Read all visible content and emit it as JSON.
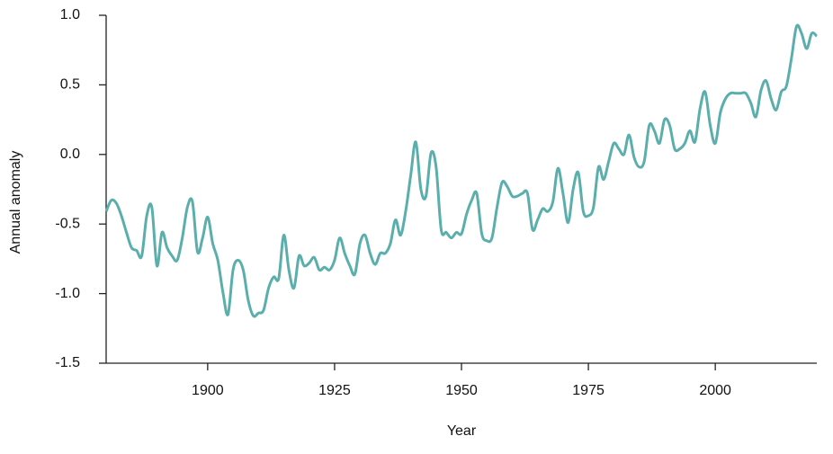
{
  "chart_data": {
    "type": "line",
    "xlabel": "Year",
    "ylabel": "Annual anomaly",
    "x": [
      1880,
      1881,
      1882,
      1883,
      1884,
      1885,
      1886,
      1887,
      1888,
      1889,
      1890,
      1891,
      1892,
      1893,
      1894,
      1895,
      1896,
      1897,
      1898,
      1899,
      1900,
      1901,
      1902,
      1903,
      1904,
      1905,
      1906,
      1907,
      1908,
      1909,
      1910,
      1911,
      1912,
      1913,
      1914,
      1915,
      1916,
      1917,
      1918,
      1919,
      1920,
      1921,
      1922,
      1923,
      1924,
      1925,
      1926,
      1927,
      1928,
      1929,
      1930,
      1931,
      1932,
      1933,
      1934,
      1935,
      1936,
      1937,
      1938,
      1939,
      1940,
      1941,
      1942,
      1943,
      1944,
      1945,
      1946,
      1947,
      1948,
      1949,
      1950,
      1951,
      1952,
      1953,
      1954,
      1955,
      1956,
      1957,
      1958,
      1959,
      1960,
      1961,
      1962,
      1963,
      1964,
      1965,
      1966,
      1967,
      1968,
      1969,
      1970,
      1971,
      1972,
      1973,
      1974,
      1975,
      1976,
      1977,
      1978,
      1979,
      1980,
      1981,
      1982,
      1983,
      1984,
      1985,
      1986,
      1987,
      1988,
      1989,
      1990,
      1991,
      1992,
      1993,
      1994,
      1995,
      1996,
      1997,
      1998,
      1999,
      2000,
      2001,
      2002,
      2003,
      2004,
      2005,
      2006,
      2007,
      2008,
      2009,
      2010,
      2011,
      2012,
      2013,
      2014,
      2015,
      2016,
      2017,
      2018,
      2019,
      2020
    ],
    "series": [
      {
        "name": "Annual anomaly",
        "color": "#5aafad",
        "values": [
          -0.41,
          -0.33,
          -0.35,
          -0.44,
          -0.56,
          -0.67,
          -0.69,
          -0.73,
          -0.44,
          -0.38,
          -0.8,
          -0.56,
          -0.67,
          -0.73,
          -0.76,
          -0.6,
          -0.38,
          -0.34,
          -0.7,
          -0.6,
          -0.45,
          -0.64,
          -0.76,
          -0.99,
          -1.15,
          -0.83,
          -0.76,
          -0.83,
          -1.05,
          -1.16,
          -1.14,
          -1.12,
          -0.96,
          -0.88,
          -0.89,
          -0.58,
          -0.83,
          -0.96,
          -0.73,
          -0.8,
          -0.78,
          -0.74,
          -0.83,
          -0.81,
          -0.83,
          -0.76,
          -0.6,
          -0.71,
          -0.8,
          -0.86,
          -0.64,
          -0.58,
          -0.71,
          -0.79,
          -0.71,
          -0.71,
          -0.64,
          -0.47,
          -0.58,
          -0.41,
          -0.15,
          0.09,
          -0.25,
          -0.3,
          0.01,
          -0.09,
          -0.54,
          -0.56,
          -0.6,
          -0.56,
          -0.57,
          -0.43,
          -0.33,
          -0.28,
          -0.57,
          -0.62,
          -0.6,
          -0.38,
          -0.2,
          -0.23,
          -0.3,
          -0.3,
          -0.28,
          -0.28,
          -0.54,
          -0.47,
          -0.39,
          -0.41,
          -0.34,
          -0.1,
          -0.28,
          -0.49,
          -0.25,
          -0.13,
          -0.41,
          -0.44,
          -0.38,
          -0.09,
          -0.18,
          -0.05,
          0.08,
          0.04,
          0.0,
          0.14,
          -0.02,
          -0.09,
          -0.05,
          0.21,
          0.17,
          0.08,
          0.25,
          0.21,
          0.04,
          0.04,
          0.08,
          0.17,
          0.09,
          0.33,
          0.45,
          0.21,
          0.08,
          0.3,
          0.4,
          0.44,
          0.44,
          0.44,
          0.44,
          0.37,
          0.27,
          0.46,
          0.53,
          0.4,
          0.32,
          0.45,
          0.49,
          0.69,
          0.92,
          0.87,
          0.76,
          0.87,
          0.85
        ]
      }
    ],
    "xlim": [
      1880,
      2020
    ],
    "xticks": [
      1900,
      1925,
      1950,
      1975,
      2000
    ],
    "ylim": [
      -1.5,
      1.0
    ],
    "yticks": [
      {
        "value": 1.0,
        "label": "1.0"
      },
      0.5,
      {
        "value": 0.0,
        "label": "0.0"
      },
      -0.5,
      {
        "value": -1.0,
        "label": "-1.0"
      },
      -1.5
    ],
    "grid": false
  }
}
